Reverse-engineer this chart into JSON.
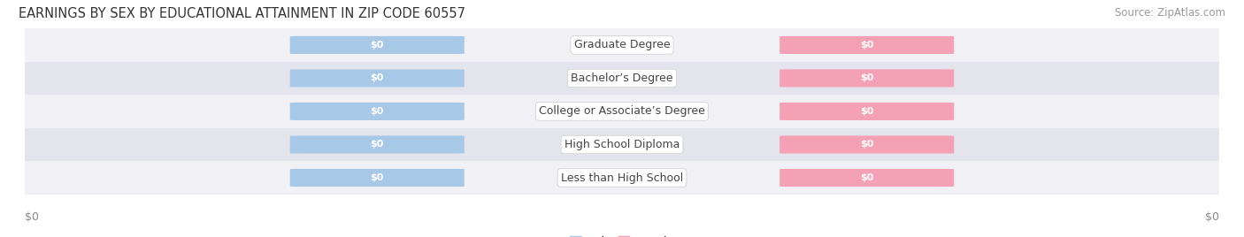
{
  "title": "EARNINGS BY SEX BY EDUCATIONAL ATTAINMENT IN ZIP CODE 60557",
  "source": "Source: ZipAtlas.com",
  "categories": [
    "Less than High School",
    "High School Diploma",
    "College or Associate’s Degree",
    "Bachelor’s Degree",
    "Graduate Degree"
  ],
  "male_values": [
    0,
    0,
    0,
    0,
    0
  ],
  "female_values": [
    0,
    0,
    0,
    0,
    0
  ],
  "male_color": "#a8c8e8",
  "female_color": "#f4a0b5",
  "row_bg_light": "#f0f0f5",
  "row_bg_dark": "#e4e4ec",
  "bar_label": "$0",
  "value_text_color": "#ffffff",
  "label_text_color": "#444444",
  "axis_label_color": "#888888",
  "title_color": "#333333",
  "source_color": "#999999",
  "title_fontsize": 10.5,
  "source_fontsize": 8.5,
  "bar_value_fontsize": 8,
  "cat_label_fontsize": 9,
  "axis_tick_fontsize": 9,
  "legend_fontsize": 9,
  "background_color": "#ffffff"
}
